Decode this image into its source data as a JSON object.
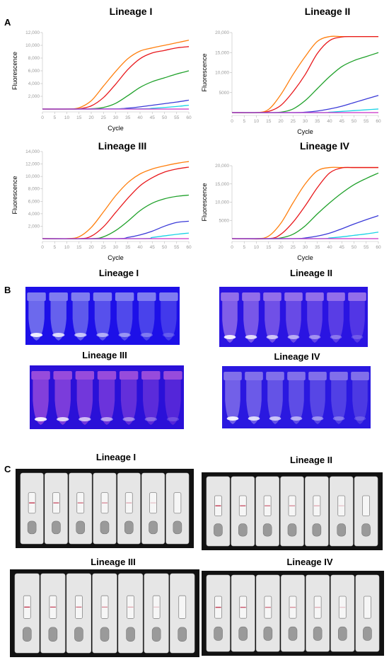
{
  "panels": {
    "a": "A",
    "b": "B",
    "c": "C"
  },
  "series_colors": [
    "#ff7f0e",
    "#e8181c",
    "#1fa12a",
    "#3a3ad8",
    "#19d3e6",
    "#c62fc6"
  ],
  "chart_data": [
    {
      "type": "line",
      "title": "Lineage I",
      "xlabel": "Cycle",
      "ylabel": "Fluorescence",
      "xlim": [
        0,
        60
      ],
      "ylim": [
        0,
        12000
      ],
      "xticks": [
        0,
        5,
        10,
        15,
        20,
        25,
        30,
        35,
        40,
        45,
        50,
        55,
        60
      ],
      "yticks": [
        2000,
        4000,
        6000,
        8000,
        10000,
        12000
      ],
      "ytick_labels": [
        "2,000",
        "4,000",
        "6,000",
        "8,000",
        "10,000",
        "12,000"
      ],
      "series": [
        {
          "color": "#ff7f0e",
          "x": [
            0,
            10,
            15,
            20,
            25,
            30,
            35,
            40,
            45,
            50,
            55,
            60
          ],
          "y": [
            0,
            0,
            200,
            1300,
            3600,
            5900,
            7900,
            9100,
            9600,
            10000,
            10400,
            10800
          ]
        },
        {
          "color": "#e8181c",
          "x": [
            0,
            10,
            15,
            20,
            25,
            30,
            35,
            40,
            45,
            50,
            55,
            60
          ],
          "y": [
            0,
            0,
            50,
            500,
            1800,
            3900,
            6200,
            7900,
            8800,
            9200,
            9600,
            9800
          ]
        },
        {
          "color": "#1fa12a",
          "x": [
            0,
            10,
            20,
            25,
            30,
            35,
            40,
            45,
            50,
            55,
            60
          ],
          "y": [
            0,
            0,
            50,
            250,
            900,
            2100,
            3400,
            4300,
            4900,
            5500,
            6000
          ]
        },
        {
          "color": "#3a3ad8",
          "x": [
            0,
            10,
            30,
            35,
            40,
            45,
            50,
            55,
            60
          ],
          "y": [
            0,
            0,
            30,
            150,
            350,
            600,
            850,
            1100,
            1400
          ]
        },
        {
          "color": "#19d3e6",
          "x": [
            0,
            10,
            40,
            45,
            50,
            55,
            60
          ],
          "y": [
            0,
            0,
            40,
            120,
            250,
            400,
            600
          ]
        },
        {
          "color": "#c62fc6",
          "x": [
            0,
            60
          ],
          "y": [
            0,
            0
          ]
        }
      ]
    },
    {
      "type": "line",
      "title": "Lineage II",
      "xlabel": "Cycle",
      "ylabel": "Fluorescence",
      "xlim": [
        0,
        60
      ],
      "ylim": [
        0,
        20000
      ],
      "xticks": [
        0,
        5,
        10,
        15,
        20,
        25,
        30,
        35,
        40,
        45,
        50,
        55,
        60
      ],
      "yticks": [
        5000,
        10000,
        15000,
        20000
      ],
      "ytick_labels": [
        "5000",
        "10,000",
        "15,000",
        "20,000"
      ],
      "series": [
        {
          "color": "#ff7f0e",
          "x": [
            0,
            10,
            15,
            20,
            25,
            30,
            35,
            40,
            45,
            50,
            55,
            60
          ],
          "y": [
            0,
            0,
            800,
            4500,
            9500,
            14000,
            17800,
            19000,
            19000,
            19000,
            19000,
            19000
          ]
        },
        {
          "color": "#e8181c",
          "x": [
            0,
            10,
            15,
            20,
            25,
            30,
            35,
            40,
            45,
            50,
            55,
            60
          ],
          "y": [
            0,
            0,
            300,
            1800,
            5200,
            9500,
            14800,
            18000,
            18900,
            19000,
            19000,
            19000
          ]
        },
        {
          "color": "#1fa12a",
          "x": [
            0,
            15,
            20,
            25,
            30,
            35,
            40,
            45,
            50,
            55,
            60
          ],
          "y": [
            0,
            0,
            100,
            900,
            3000,
            6000,
            9000,
            11500,
            13000,
            14000,
            15000
          ]
        },
        {
          "color": "#3a3ad8",
          "x": [
            0,
            25,
            30,
            35,
            40,
            45,
            50,
            55,
            60
          ],
          "y": [
            0,
            0,
            100,
            400,
            900,
            1600,
            2500,
            3400,
            4300
          ]
        },
        {
          "color": "#19d3e6",
          "x": [
            0,
            35,
            40,
            45,
            50,
            55,
            60
          ],
          "y": [
            0,
            0,
            100,
            300,
            500,
            700,
            900
          ]
        },
        {
          "color": "#c62fc6",
          "x": [
            0,
            60
          ],
          "y": [
            0,
            0
          ]
        }
      ]
    },
    {
      "type": "line",
      "title": "Lineage III",
      "xlabel": "Cycle",
      "ylabel": "Fluorescence",
      "xlim": [
        0,
        60
      ],
      "ylim": [
        0,
        14000
      ],
      "xticks": [
        0,
        5,
        10,
        15,
        20,
        25,
        30,
        35,
        40,
        45,
        50,
        55,
        60
      ],
      "yticks": [
        2000,
        4000,
        6000,
        8000,
        10000,
        12000,
        14000
      ],
      "ytick_labels": [
        "2,000",
        "4,000",
        "6,000",
        "8,000",
        "10,000",
        "12,000",
        "14,000"
      ],
      "series": [
        {
          "color": "#ff7f0e",
          "x": [
            0,
            10,
            15,
            20,
            25,
            30,
            35,
            40,
            45,
            50,
            55,
            60
          ],
          "y": [
            0,
            0,
            300,
            1800,
            4300,
            6900,
            9000,
            10400,
            11200,
            11700,
            12100,
            12400
          ]
        },
        {
          "color": "#e8181c",
          "x": [
            0,
            15,
            20,
            25,
            30,
            35,
            40,
            45,
            50,
            55,
            60
          ],
          "y": [
            0,
            0,
            400,
            1900,
            4200,
            6500,
            8500,
            9800,
            10700,
            11200,
            11500
          ]
        },
        {
          "color": "#1fa12a",
          "x": [
            0,
            20,
            25,
            30,
            35,
            40,
            45,
            50,
            55,
            60
          ],
          "y": [
            0,
            0,
            300,
            1300,
            2800,
            4500,
            5700,
            6400,
            6800,
            7000
          ]
        },
        {
          "color": "#3a3ad8",
          "x": [
            0,
            30,
            35,
            40,
            45,
            50,
            55,
            60
          ],
          "y": [
            0,
            0,
            200,
            600,
            1200,
            2000,
            2600,
            2800
          ]
        },
        {
          "color": "#19d3e6",
          "x": [
            0,
            40,
            45,
            50,
            55,
            60
          ],
          "y": [
            0,
            0,
            200,
            450,
            700,
            900
          ]
        },
        {
          "color": "#c62fc6",
          "x": [
            0,
            60
          ],
          "y": [
            0,
            0
          ]
        }
      ]
    },
    {
      "type": "line",
      "title": "Lineage IV",
      "xlabel": "Cycle",
      "ylabel": "Fluorescence",
      "xlim": [
        0,
        60
      ],
      "ylim": [
        0,
        20000
      ],
      "xticks": [
        0,
        5,
        10,
        15,
        20,
        25,
        30,
        35,
        40,
        45,
        50,
        55,
        60
      ],
      "yticks": [
        5000,
        10000,
        15000,
        20000
      ],
      "ytick_labels": [
        "5000",
        "10,000",
        "15,000",
        "20,000"
      ],
      "series": [
        {
          "color": "#ff7f0e",
          "x": [
            0,
            10,
            15,
            20,
            25,
            30,
            35,
            40,
            45,
            50,
            55,
            60
          ],
          "y": [
            0,
            0,
            700,
            4200,
            9800,
            15000,
            18600,
            19500,
            19500,
            19500,
            19500,
            19500
          ]
        },
        {
          "color": "#e8181c",
          "x": [
            0,
            15,
            20,
            25,
            30,
            35,
            40,
            45,
            50,
            55,
            60
          ],
          "y": [
            0,
            0,
            1200,
            4500,
            9000,
            14000,
            18000,
            19400,
            19500,
            19500,
            19500
          ]
        },
        {
          "color": "#1fa12a",
          "x": [
            0,
            15,
            20,
            25,
            30,
            35,
            40,
            45,
            50,
            55,
            60
          ],
          "y": [
            0,
            0,
            200,
            1200,
            3500,
            6800,
            9800,
            12500,
            14800,
            16500,
            18000
          ]
        },
        {
          "color": "#3a3ad8",
          "x": [
            0,
            25,
            30,
            35,
            40,
            45,
            50,
            55,
            60
          ],
          "y": [
            0,
            0,
            200,
            700,
            1500,
            2700,
            4000,
            5200,
            6300
          ]
        },
        {
          "color": "#19d3e6",
          "x": [
            0,
            35,
            40,
            45,
            50,
            55,
            60
          ],
          "y": [
            0,
            0,
            200,
            500,
            900,
            1300,
            1800
          ]
        },
        {
          "color": "#c62fc6",
          "x": [
            0,
            60
          ],
          "y": [
            0,
            0
          ]
        }
      ]
    }
  ],
  "fluorescence_photos": [
    {
      "title": "Lineage I",
      "bg": "#1d10e8",
      "tube_glow": "#cfd6f5",
      "tubes": 7
    },
    {
      "title": "Lineage II",
      "bg": "#2a14e2",
      "tube_glow": "#e8b8f0",
      "tubes": 7
    },
    {
      "title": "Lineage III",
      "bg": "#2a10d8",
      "tube_glow": "#f07be0",
      "tubes": 7
    },
    {
      "title": "Lineage IV",
      "bg": "#2a18e0",
      "tube_glow": "#c9b8f2",
      "tubes": 7
    }
  ],
  "strip_photos": [
    {
      "title": "Lineage I",
      "strips": 7
    },
    {
      "title": "Lineage II",
      "strips": 7
    },
    {
      "title": "Lineage III",
      "strips": 7
    },
    {
      "title": "Lineage IV",
      "strips": 7
    }
  ]
}
